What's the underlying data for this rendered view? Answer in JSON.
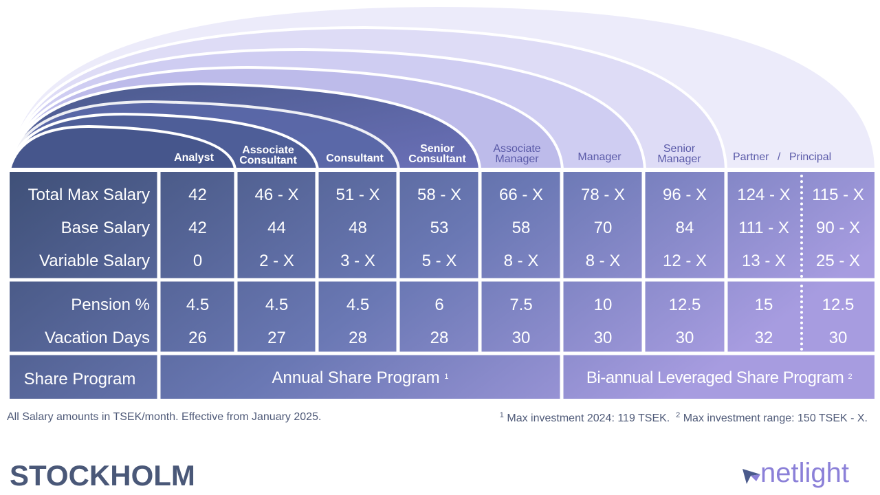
{
  "columns": [
    {
      "line1": "Analyst",
      "line2": ""
    },
    {
      "line1": "Associate",
      "line2": "Consultant"
    },
    {
      "line1": "Consultant",
      "line2": ""
    },
    {
      "line1": "Senior",
      "line2": "Consultant"
    },
    {
      "line1": "Associate",
      "line2": "Manager"
    },
    {
      "line1": "Manager",
      "line2": ""
    },
    {
      "line1": "Senior",
      "line2": "Manager"
    },
    {
      "line1": "Partner",
      "line2": "/",
      "line3": "Principal"
    }
  ],
  "rows": {
    "total_max": {
      "label": "Total Max Salary",
      "values": [
        "42",
        "46 - X",
        "51 - X",
        "58 - X",
        "66 - X",
        "78 - X",
        "96 - X",
        "124 - X",
        "115 - X"
      ]
    },
    "base": {
      "label": "Base Salary",
      "values": [
        "42",
        "44",
        "48",
        "53",
        "58",
        "70",
        "84",
        "111 - X",
        "90 - X"
      ]
    },
    "variable": {
      "label": "Variable Salary",
      "values": [
        "0",
        "2 - X",
        "3 - X",
        "5 - X",
        "8 - X",
        "8 - X",
        "12 - X",
        "13 - X",
        "25 - X"
      ]
    },
    "pension": {
      "label": "Pension %",
      "values": [
        "4.5",
        "4.5",
        "4.5",
        "6",
        "7.5",
        "10",
        "12.5",
        "15",
        "12.5"
      ]
    },
    "vacation": {
      "label": "Vacation Days",
      "values": [
        "26",
        "27",
        "28",
        "28",
        "30",
        "30",
        "30",
        "32",
        "30"
      ]
    }
  },
  "share": {
    "label": "Share Program",
    "annual": "Annual Share Program",
    "annual_sup": "1",
    "biannual": "Bi-annual Leveraged Share Program",
    "biannual_sup": "2"
  },
  "footnotes": {
    "left": "All Salary amounts in TSEK/month. Effective from January 2025.",
    "right_sup1": "1",
    "right_text1": "Max investment 2024: 119 TSEK.",
    "right_sup2": "2",
    "right_text2": "Max investment range: 150 TSEK - X."
  },
  "city": "STOCKHOLM",
  "logo": {
    "text": "netlight",
    "icon": "netlight-logo-icon"
  },
  "colors": {
    "dark": "#4a5a80",
    "mid": "#6e78b8",
    "light": "#a79ce0",
    "arch_pale": "#ebeafa"
  }
}
